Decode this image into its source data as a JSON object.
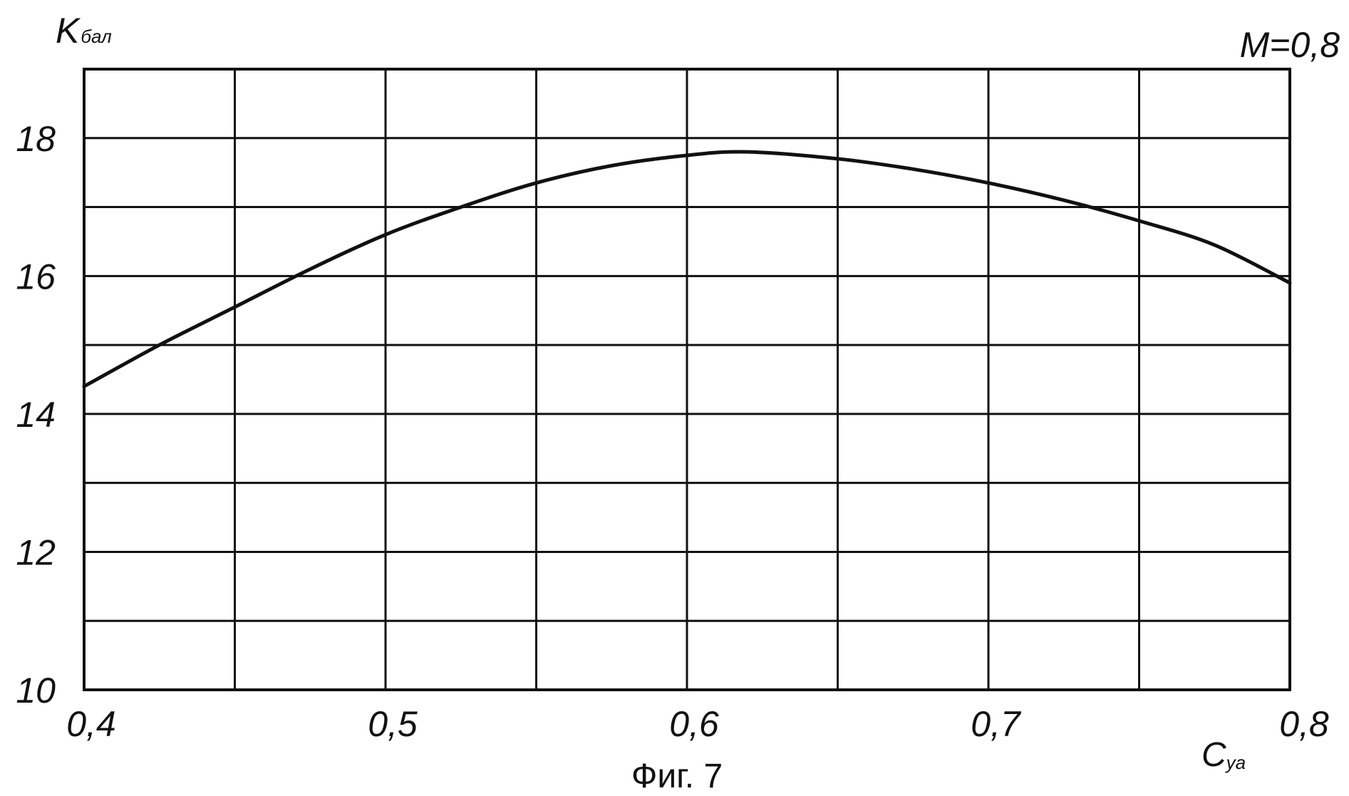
{
  "chart_data": {
    "type": "line",
    "annotation": "M=0,8",
    "caption": "Фиг. 7",
    "ylabel": {
      "main": "K",
      "sub": "бал"
    },
    "xlabel": {
      "main": "C",
      "sub": "ya"
    },
    "xlim": [
      0.4,
      0.8
    ],
    "ylim": [
      10,
      19
    ],
    "x_ticks": [
      0.4,
      0.5,
      0.6,
      0.7,
      0.8
    ],
    "x_tick_labels": [
      "0,4",
      "0,5",
      "0,6",
      "0,7",
      "0,8"
    ],
    "y_ticks": [
      10,
      12,
      14,
      16,
      18
    ],
    "y_tick_labels": [
      "10",
      "12",
      "14",
      "16",
      "18"
    ],
    "x_grid": [
      0.45,
      0.5,
      0.55,
      0.6,
      0.65,
      0.7,
      0.75
    ],
    "y_grid": [
      11,
      12,
      13,
      14,
      15,
      16,
      17,
      18
    ],
    "grid": true,
    "series": [
      {
        "x": [
          0.4,
          0.425,
          0.45,
          0.475,
          0.5,
          0.525,
          0.55,
          0.575,
          0.6,
          0.62,
          0.65,
          0.675,
          0.7,
          0.725,
          0.75,
          0.775,
          0.8
        ],
        "y": [
          14.4,
          15.0,
          15.55,
          16.1,
          16.6,
          17.0,
          17.35,
          17.6,
          17.75,
          17.8,
          17.7,
          17.55,
          17.35,
          17.1,
          16.8,
          16.45,
          15.9
        ]
      }
    ]
  }
}
